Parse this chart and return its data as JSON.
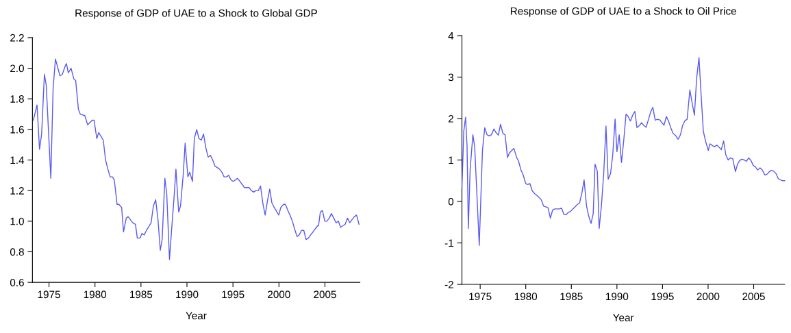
{
  "chart_data": [
    {
      "type": "line",
      "title": "Response of GDP of UAE to a Shock to Global GDP",
      "xlabel": "Year",
      "xlim": [
        1973.2,
        2008.8
      ],
      "ylim": [
        0.6,
        2.2
      ],
      "xticks": [
        1975,
        1980,
        1985,
        1990,
        1995,
        2000,
        2005
      ],
      "yticks": [
        {
          "value": 0.6,
          "label": "0.6"
        },
        {
          "value": 0.8,
          "label": "0.8"
        },
        {
          "value": 1.0,
          "label": "1.0"
        },
        {
          "value": 1.2,
          "label": "1.2"
        },
        {
          "value": 1.4,
          "label": "1.4"
        },
        {
          "value": 1.6,
          "label": "1.6"
        },
        {
          "value": 1.8,
          "label": "1.8"
        },
        {
          "value": 2.0,
          "label": "2.0"
        },
        {
          "value": 2.2,
          "label": "2.2"
        }
      ],
      "grid": false,
      "legend": false,
      "marker": "none",
      "line_style": "solid",
      "series": [
        {
          "color": "#5a5af0",
          "x": [
            1973.3,
            1973.7,
            1973.97,
            1974.2,
            1974.5,
            1974.7,
            1975.2,
            1975.45,
            1975.7,
            1976.2,
            1976.45,
            1976.8,
            1976.9,
            1977.1,
            1977.4,
            1977.7,
            1977.9,
            1978.2,
            1978.4,
            1978.9,
            1979.2,
            1979.7,
            1979.9,
            1980.2,
            1980.4,
            1980.9,
            1981.15,
            1981.4,
            1981.65,
            1981.9,
            1982.1,
            1982.4,
            1982.6,
            1982.9,
            1983.1,
            1983.4,
            1983.6,
            1984.1,
            1984.4,
            1984.6,
            1984.9,
            1985.1,
            1985.35,
            1985.6,
            1986.1,
            1986.35,
            1986.6,
            1986.85,
            1987.1,
            1987.3,
            1987.6,
            1987.8,
            1988.1,
            1988.3,
            1988.6,
            1988.8,
            1989.1,
            1989.3,
            1989.6,
            1989.8,
            1990.1,
            1990.3,
            1990.6,
            1990.8,
            1991.06,
            1991.3,
            1991.56,
            1991.8,
            1992.05,
            1992.3,
            1992.55,
            1992.8,
            1993.04,
            1993.3,
            1993.54,
            1993.8,
            1994.03,
            1994.3,
            1994.53,
            1994.78,
            1995.02,
            1995.5,
            1995.77,
            1996.0,
            1996.26,
            1996.75,
            1997.0,
            1997.25,
            1997.5,
            1997.75,
            1998.0,
            1998.24,
            1998.5,
            1998.74,
            1999.0,
            1999.23,
            1999.48,
            1999.98,
            2000.2,
            2000.5,
            2000.7,
            2000.97,
            2001.2,
            2001.46,
            2001.7,
            2001.96,
            2002.2,
            2002.45,
            2002.7,
            2002.95,
            2003.2,
            2003.44,
            2003.7,
            2003.94,
            2004.2,
            2004.3,
            2004.5,
            2004.73,
            2004.98,
            2005.2,
            2005.47,
            2005.7,
            2005.96,
            2006.2,
            2006.46,
            2006.7,
            2006.95,
            2007.2,
            2007.45,
            2007.7,
            2007.94,
            2008.2,
            2008.44,
            2008.7
          ],
          "values": [
            1.66,
            1.76,
            1.47,
            1.57,
            1.96,
            1.89,
            1.28,
            1.87,
            2.06,
            1.95,
            1.96,
            2.02,
            2.03,
            1.97,
            2.0,
            1.93,
            1.92,
            1.73,
            1.7,
            1.69,
            1.63,
            1.66,
            1.66,
            1.54,
            1.58,
            1.53,
            1.4,
            1.34,
            1.29,
            1.29,
            1.27,
            1.11,
            1.11,
            1.09,
            0.93,
            1.02,
            1.03,
            0.99,
            0.98,
            0.89,
            0.89,
            0.92,
            0.91,
            0.94,
            0.99,
            1.1,
            1.14,
            1.01,
            0.81,
            0.88,
            1.28,
            1.18,
            0.75,
            0.92,
            1.16,
            1.34,
            1.06,
            1.1,
            1.31,
            1.51,
            1.29,
            1.32,
            1.26,
            1.54,
            1.6,
            1.54,
            1.53,
            1.57,
            1.48,
            1.42,
            1.43,
            1.4,
            1.36,
            1.35,
            1.34,
            1.32,
            1.29,
            1.29,
            1.3,
            1.27,
            1.26,
            1.28,
            1.26,
            1.24,
            1.22,
            1.22,
            1.2,
            1.19,
            1.2,
            1.2,
            1.23,
            1.12,
            1.04,
            1.13,
            1.21,
            1.12,
            1.09,
            1.04,
            1.09,
            1.11,
            1.11,
            1.07,
            1.04,
            1.0,
            0.95,
            0.9,
            0.91,
            0.94,
            0.94,
            0.88,
            0.89,
            0.91,
            0.93,
            0.95,
            0.97,
            0.97,
            1.06,
            1.07,
            1.0,
            1.0,
            1.02,
            1.05,
            1.02,
            0.99,
            1.0,
            0.96,
            0.97,
            0.98,
            1.02,
            0.99,
            1.01,
            1.03,
            1.04,
            0.98
          ]
        }
      ]
    },
    {
      "type": "line",
      "title": "Response of GDP of UAE to a Shock to Oil Price",
      "xlabel": "Year",
      "xlim": [
        1973.0,
        2008.4
      ],
      "ylim": [
        -2,
        4
      ],
      "xticks": [
        1975,
        1980,
        1985,
        1990,
        1995,
        2000,
        2005
      ],
      "yticks": [
        -2,
        -1,
        0,
        1,
        2,
        3,
        4
      ],
      "grid": false,
      "legend": false,
      "marker": "none",
      "line_style": "solid",
      "series": [
        {
          "color": "#5a5af0",
          "x": [
            1973.0,
            1973.2,
            1973.4,
            1973.56,
            1973.7,
            1973.9,
            1974.2,
            1974.4,
            1974.9,
            1975.25,
            1975.5,
            1975.75,
            1976.0,
            1976.24,
            1976.5,
            1976.74,
            1977.0,
            1977.23,
            1977.5,
            1977.73,
            1978.0,
            1978.2,
            1978.7,
            1979.0,
            1979.2,
            1979.47,
            1979.7,
            1980.0,
            1980.2,
            1980.46,
            1980.7,
            1980.96,
            1981.2,
            1981.45,
            1981.7,
            1981.95,
            1982.2,
            1982.44,
            1982.7,
            1982.94,
            1983.2,
            1983.7,
            1983.93,
            1984.2,
            1984.4,
            1984.7,
            1984.9,
            1985.17,
            1985.4,
            1985.67,
            1985.9,
            1986.16,
            1986.4,
            1986.66,
            1986.9,
            1987.16,
            1987.4,
            1987.6,
            1987.85,
            1988.05,
            1988.3,
            1988.55,
            1988.8,
            1989.04,
            1989.3,
            1989.54,
            1989.8,
            1990.0,
            1990.25,
            1990.5,
            1990.74,
            1991.0,
            1991.23,
            1991.48,
            1991.72,
            1991.97,
            1992.2,
            1992.46,
            1992.7,
            1992.96,
            1993.2,
            1993.45,
            1993.7,
            1993.94,
            1994.2,
            1994.43,
            1994.7,
            1994.93,
            1995.17,
            1995.42,
            1995.66,
            1995.9,
            1996.16,
            1996.4,
            1996.72,
            1996.97,
            1997.2,
            1997.46,
            1997.7,
            1998.0,
            1998.25,
            1998.5,
            1998.74,
            1999.0,
            1999.24,
            1999.48,
            1999.73,
            2000.02,
            2000.2,
            2000.47,
            2000.7,
            2000.96,
            2001.2,
            2001.45,
            2001.7,
            2001.95,
            2002.2,
            2002.44,
            2002.7,
            2003.0,
            2003.23,
            2003.47,
            2003.7,
            2003.97,
            2004.2,
            2004.46,
            2004.7,
            2004.95,
            2005.2,
            2005.44,
            2005.7,
            2005.94,
            2006.23,
            2006.48,
            2006.72,
            2006.97,
            2007.2,
            2007.46,
            2007.7,
            2007.96,
            2008.2,
            2008.4
          ],
          "values": [
            0.34,
            1.69,
            2.03,
            1.34,
            -0.65,
            0.78,
            1.61,
            1.31,
            -1.06,
            1.23,
            1.78,
            1.61,
            1.58,
            1.61,
            1.75,
            1.66,
            1.6,
            1.86,
            1.64,
            1.61,
            1.06,
            1.17,
            1.28,
            1.06,
            0.98,
            0.76,
            0.65,
            0.43,
            0.41,
            0.43,
            0.26,
            0.19,
            0.15,
            0.1,
            0.04,
            -0.11,
            -0.13,
            -0.15,
            -0.4,
            -0.21,
            -0.18,
            -0.18,
            -0.16,
            -0.32,
            -0.32,
            -0.26,
            -0.24,
            -0.18,
            -0.13,
            -0.07,
            -0.04,
            0.21,
            0.52,
            -0.1,
            -0.35,
            -0.53,
            -0.29,
            0.9,
            0.73,
            -0.65,
            -0.1,
            0.67,
            1.82,
            0.54,
            0.67,
            1.12,
            1.99,
            1.2,
            1.61,
            0.94,
            1.45,
            2.11,
            2.05,
            1.94,
            2.08,
            2.17,
            1.78,
            1.83,
            1.9,
            1.83,
            1.79,
            1.97,
            2.16,
            2.27,
            1.96,
            1.98,
            1.97,
            1.9,
            1.84,
            2.05,
            1.94,
            1.78,
            1.64,
            1.6,
            1.5,
            1.61,
            1.83,
            1.95,
            1.98,
            2.69,
            2.38,
            2.08,
            2.96,
            3.47,
            2.55,
            1.69,
            1.45,
            1.23,
            1.39,
            1.35,
            1.32,
            1.36,
            1.31,
            1.25,
            1.46,
            1.12,
            1.0,
            1.05,
            1.03,
            0.72,
            0.9,
            0.99,
            1.02,
            1.0,
            0.97,
            1.05,
            0.99,
            0.87,
            0.83,
            0.76,
            0.81,
            0.76,
            0.64,
            0.66,
            0.72,
            0.75,
            0.73,
            0.67,
            0.55,
            0.52,
            0.5,
            0.5
          ]
        }
      ]
    }
  ]
}
